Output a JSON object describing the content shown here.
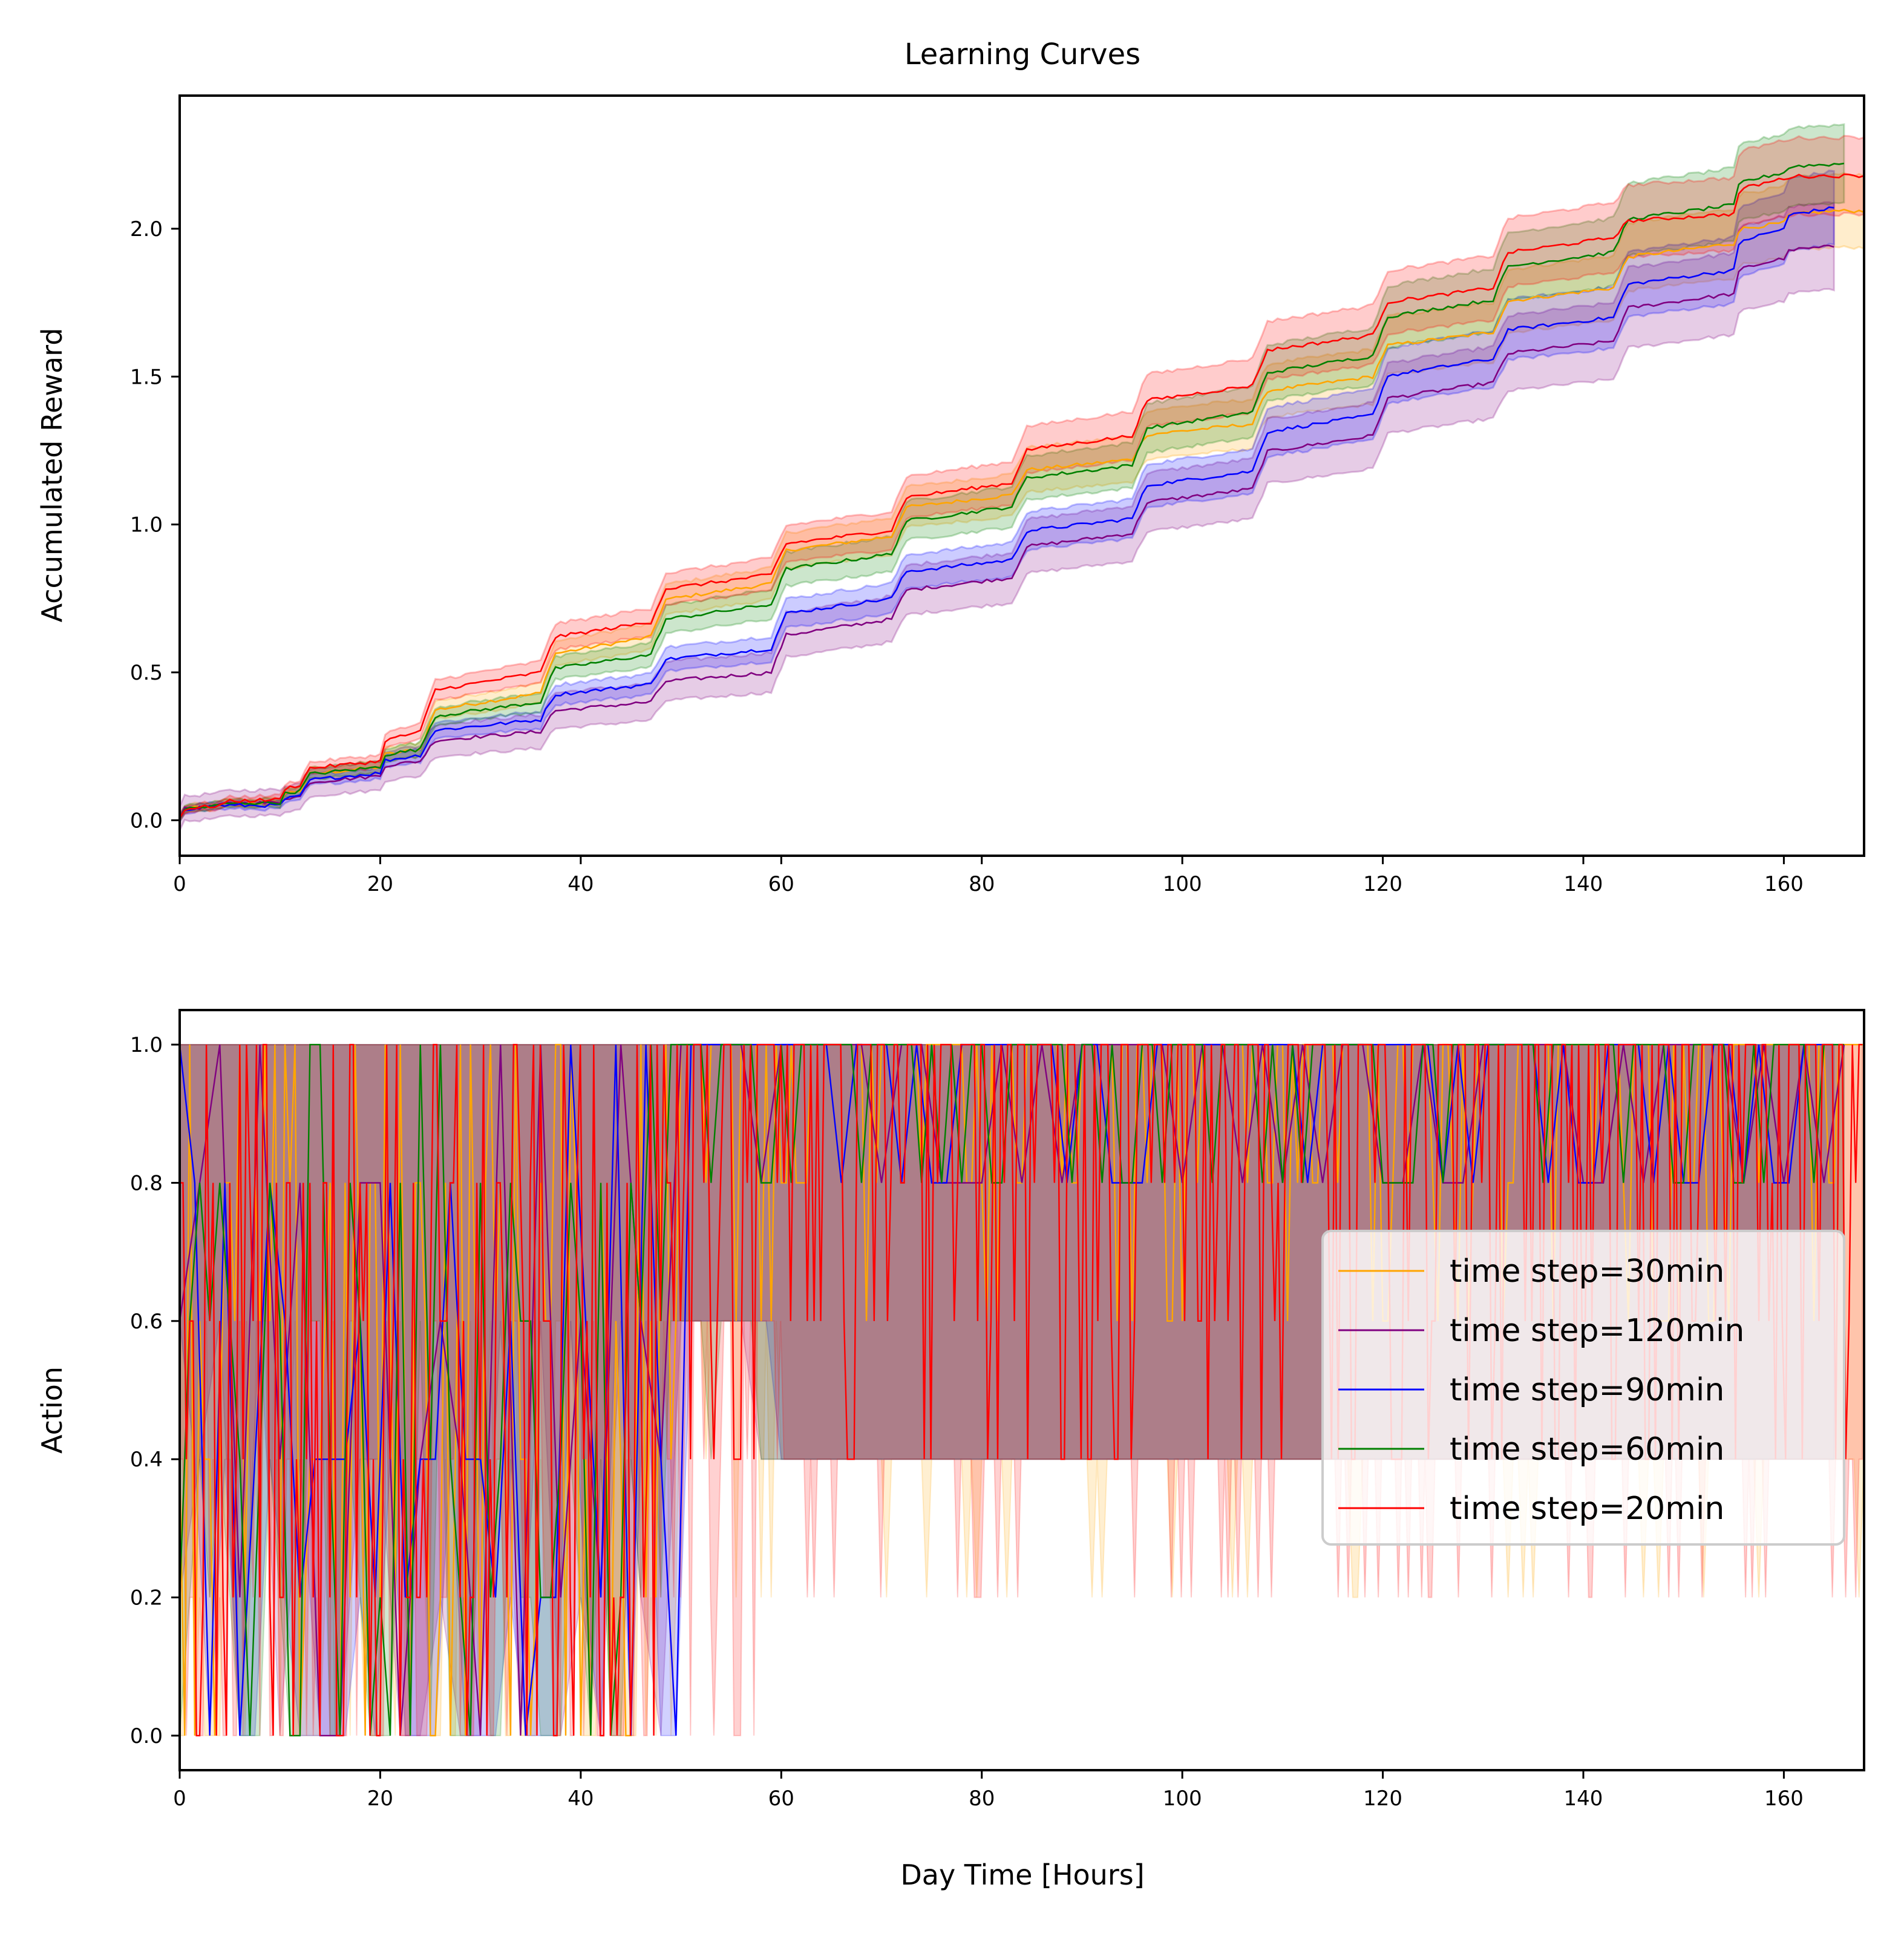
{
  "chart_data": [
    {
      "type": "line",
      "title": "Learning Curves",
      "xlabel": "",
      "ylabel": "Accumulated Reward",
      "xlim": [
        0,
        168
      ],
      "ylim": [
        -0.12,
        2.45
      ],
      "xticks": [
        0,
        20,
        40,
        60,
        80,
        100,
        120,
        140,
        160
      ],
      "yticks": [
        0.0,
        0.5,
        1.0,
        1.5,
        2.0
      ],
      "xtick_labels": [
        "0",
        "20",
        "40",
        "60",
        "80",
        "100",
        "120",
        "140",
        "160"
      ],
      "ytick_labels": [
        "0.0",
        "0.5",
        "1.0",
        "1.5",
        "2.0"
      ],
      "grid": false,
      "shaded_band": "mean ± spread",
      "series": [
        {
          "color": "#ffa500",
          "x": [
            0,
            4,
            10,
            12,
            20,
            24,
            36,
            47,
            59,
            71,
            83,
            95,
            107,
            119,
            131,
            143,
            155,
            160,
            165,
            168
          ],
          "y": [
            0.01,
            0.05,
            0.06,
            0.1,
            0.18,
            0.24,
            0.43,
            0.62,
            0.8,
            0.96,
            1.1,
            1.22,
            1.34,
            1.5,
            1.65,
            1.8,
            1.95,
            2.02,
            2.06,
            2.06
          ]
        },
        {
          "color": "#800080",
          "x": [
            0,
            4,
            10,
            12,
            20,
            24,
            36,
            47,
            59,
            71,
            83,
            95,
            107,
            119,
            131,
            143,
            155,
            160,
            165
          ],
          "y": [
            0.01,
            0.05,
            0.06,
            0.08,
            0.15,
            0.2,
            0.3,
            0.4,
            0.5,
            0.68,
            0.82,
            0.97,
            1.12,
            1.3,
            1.48,
            1.62,
            1.78,
            1.9,
            1.94
          ]
        },
        {
          "color": "#0000ff",
          "x": [
            0,
            4,
            10,
            12,
            20,
            24,
            36,
            47,
            59,
            71,
            83,
            95,
            107,
            119,
            131,
            143,
            155,
            160,
            165
          ],
          "y": [
            0.01,
            0.05,
            0.05,
            0.08,
            0.16,
            0.22,
            0.34,
            0.46,
            0.58,
            0.75,
            0.88,
            1.02,
            1.18,
            1.37,
            1.56,
            1.7,
            1.86,
            2.0,
            2.07
          ]
        },
        {
          "color": "#008000",
          "x": [
            0,
            4,
            10,
            12,
            20,
            24,
            36,
            47,
            59,
            71,
            83,
            95,
            107,
            119,
            131,
            143,
            155,
            160,
            166
          ],
          "y": [
            0.01,
            0.05,
            0.06,
            0.1,
            0.18,
            0.24,
            0.4,
            0.56,
            0.73,
            0.9,
            1.06,
            1.2,
            1.38,
            1.57,
            1.76,
            1.92,
            2.08,
            2.19,
            2.22
          ]
        },
        {
          "color": "#ff0000",
          "x": [
            0,
            4,
            10,
            12,
            20,
            24,
            36,
            47,
            59,
            71,
            83,
            95,
            107,
            119,
            131,
            143,
            155,
            160,
            168
          ],
          "y": [
            0.01,
            0.05,
            0.07,
            0.12,
            0.2,
            0.3,
            0.5,
            0.67,
            0.83,
            0.98,
            1.14,
            1.3,
            1.47,
            1.64,
            1.8,
            1.97,
            2.05,
            2.17,
            2.18
          ]
        }
      ]
    },
    {
      "type": "line",
      "title": "",
      "xlabel": "Day Time [Hours]",
      "ylabel": "Action",
      "xlim": [
        0,
        168
      ],
      "ylim": [
        -0.05,
        1.05
      ],
      "xticks": [
        0,
        20,
        40,
        60,
        80,
        100,
        120,
        140,
        160
      ],
      "yticks": [
        0.0,
        0.2,
        0.4,
        0.6,
        0.8,
        1.0
      ],
      "xtick_labels": [
        "0",
        "20",
        "40",
        "60",
        "80",
        "100",
        "120",
        "140",
        "160"
      ],
      "ytick_labels": [
        "0.0",
        "0.2",
        "0.4",
        "0.6",
        "0.8",
        "1.0"
      ],
      "grid": false,
      "legend": {
        "position": "center-right",
        "entries": [
          {
            "label": "time step=30min",
            "color": "#ffa500"
          },
          {
            "label": "time step=120min",
            "color": "#800080"
          },
          {
            "label": "time step=90min",
            "color": "#0000ff"
          },
          {
            "label": "time step=60min",
            "color": "#008000"
          },
          {
            "label": "time step=20min",
            "color": "#ff0000"
          }
        ]
      },
      "series": [
        {
          "color": "#ffa500",
          "step_hours": 0.5,
          "x_end": 168,
          "early_levels": [
            0,
            0.2,
            0.4,
            0.6,
            0.8,
            1.0
          ],
          "late_levels": [
            0.6,
            0.8,
            1.0
          ]
        },
        {
          "color": "#800080",
          "step_hours": 2,
          "x_end": 166,
          "early_levels": [
            0,
            0.2,
            0.4,
            0.6,
            0.8,
            1.0
          ],
          "late_levels": [
            0.8,
            1.0
          ]
        },
        {
          "color": "#0000ff",
          "step_hours": 1.5,
          "x_end": 165,
          "early_levels": [
            0,
            0.2,
            0.4,
            0.6,
            0.8,
            1.0
          ],
          "late_levels": [
            0.8,
            1.0
          ]
        },
        {
          "color": "#008000",
          "step_hours": 1,
          "x_end": 166,
          "early_levels": [
            0,
            0.2,
            0.4,
            0.6,
            0.8,
            1.0
          ],
          "late_levels": [
            0.8,
            1.0
          ]
        },
        {
          "color": "#ff0000",
          "step_hours": 0.333,
          "x_end": 168,
          "early_levels": [
            0,
            0.2,
            0.4,
            0.6,
            0.8,
            1.0
          ],
          "late_levels": [
            0.4,
            0.6,
            0.8,
            1.0
          ]
        }
      ]
    }
  ]
}
